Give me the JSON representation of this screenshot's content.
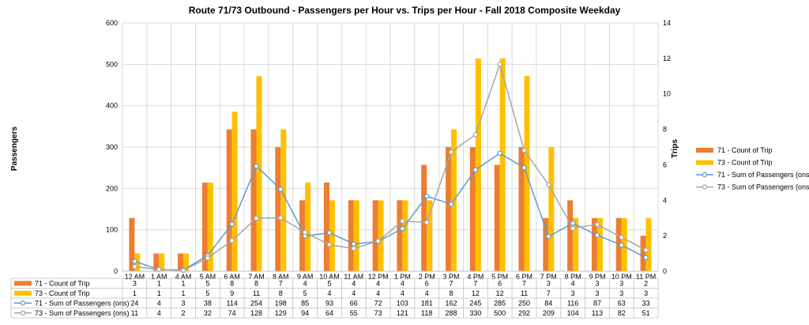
{
  "chart_data": {
    "type": "bar",
    "title": "Route 71/73 Outbound - Passengers per Hour vs. Trips per Hour - Fall 2018 Composite Weekday",
    "ylabel_left": "Passengers",
    "ylabel_right": "Trips",
    "ylim_left": [
      0,
      600
    ],
    "yticks_left": [
      0,
      100,
      200,
      300,
      400,
      500,
      600
    ],
    "ylim_right": [
      0,
      14
    ],
    "yticks_right": [
      0,
      2,
      4,
      6,
      8,
      10,
      12,
      14
    ],
    "grid": true,
    "legend_position": "right",
    "has_data_table": true,
    "categories": [
      "12 AM",
      "1 AM",
      "4 AM",
      "5 AM",
      "6 AM",
      "7 AM",
      "8 AM",
      "9 AM",
      "10 AM",
      "11 AM",
      "12 PM",
      "1 PM",
      "2 PM",
      "3 PM",
      "4 PM",
      "5 PM",
      "6 PM",
      "7 PM",
      "8 PM",
      "9 PM",
      "10 PM",
      "11 PM"
    ],
    "series": [
      {
        "name": "71 - Count of Trip",
        "kind": "bar",
        "axis": "right",
        "color": "#ED7D31",
        "values": [
          3,
          1,
          1,
          5,
          8,
          8,
          7,
          4,
          5,
          4,
          4,
          4,
          6,
          7,
          7,
          6,
          7,
          3,
          4,
          3,
          3,
          2
        ]
      },
      {
        "name": "73 - Count of Trip",
        "kind": "bar",
        "axis": "right",
        "color": "#FFC000",
        "values": [
          1,
          1,
          1,
          5,
          9,
          11,
          8,
          5,
          4,
          4,
          4,
          4,
          4,
          8,
          12,
          12,
          11,
          7,
          3,
          3,
          3,
          3
        ]
      },
      {
        "name": "71 - Sum of Passengers (ons)",
        "kind": "line",
        "axis": "left",
        "color": "#5B9BD5",
        "values": [
          24,
          4,
          3,
          38,
          114,
          254,
          198,
          85,
          93,
          66,
          72,
          103,
          181,
          162,
          245,
          285,
          250,
          84,
          116,
          87,
          63,
          33
        ]
      },
      {
        "name": "73 - Sum of Passengers (ons)",
        "kind": "line",
        "axis": "left",
        "color": "#A5A5A5",
        "values": [
          11,
          4,
          2,
          32,
          74,
          128,
          129,
          94,
          64,
          55,
          73,
          121,
          118,
          288,
          330,
          500,
          292,
          209,
          104,
          113,
          82,
          51
        ]
      }
    ]
  }
}
